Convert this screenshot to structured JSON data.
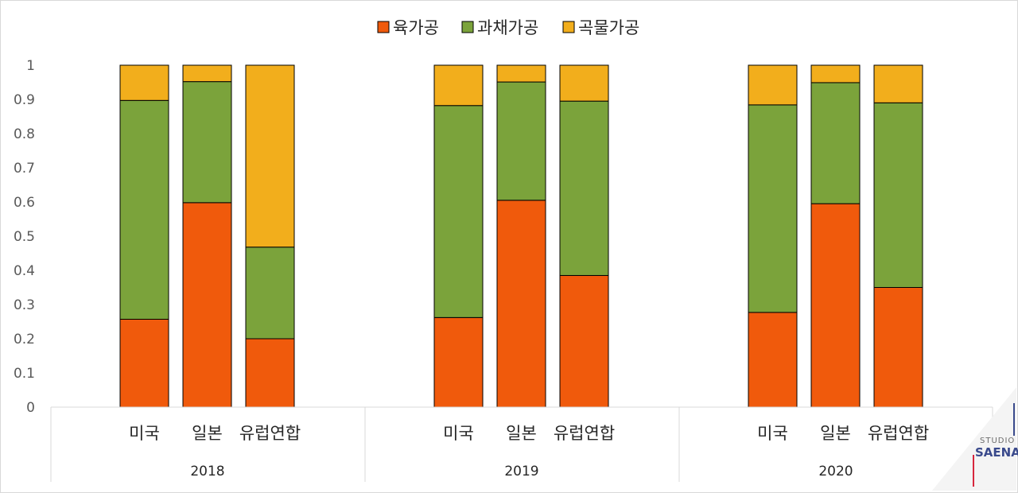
{
  "chart_data": {
    "type": "bar",
    "stacked": true,
    "groups": [
      "2018",
      "2019",
      "2020"
    ],
    "categories": [
      "미국",
      "일본",
      "유럽연합"
    ],
    "series": [
      {
        "name": "육가공",
        "color": "#F05A0C",
        "values": [
          [
            0.257,
            0.598,
            0.2
          ],
          [
            0.262,
            0.605,
            0.385
          ],
          [
            0.277,
            0.595,
            0.35
          ]
        ]
      },
      {
        "name": "과채가공",
        "color": "#7BA33B",
        "values": [
          [
            0.64,
            0.354,
            0.268
          ],
          [
            0.62,
            0.346,
            0.51
          ],
          [
            0.607,
            0.354,
            0.54
          ]
        ]
      },
      {
        "name": "곡물가공",
        "color": "#F2AE1C",
        "values": [
          [
            0.103,
            0.048,
            0.532
          ],
          [
            0.118,
            0.049,
            0.105
          ],
          [
            0.116,
            0.051,
            0.11
          ]
        ]
      }
    ],
    "yticks": [
      "0",
      "0.1",
      "0.2",
      "0.3",
      "0.4",
      "0.5",
      "0.6",
      "0.7",
      "0.8",
      "0.9",
      "1"
    ],
    "ylim": [
      0,
      1
    ],
    "legend_position": "top",
    "grid": false
  },
  "watermark": {
    "line1": "STUDIO",
    "line2": "SAENA"
  }
}
